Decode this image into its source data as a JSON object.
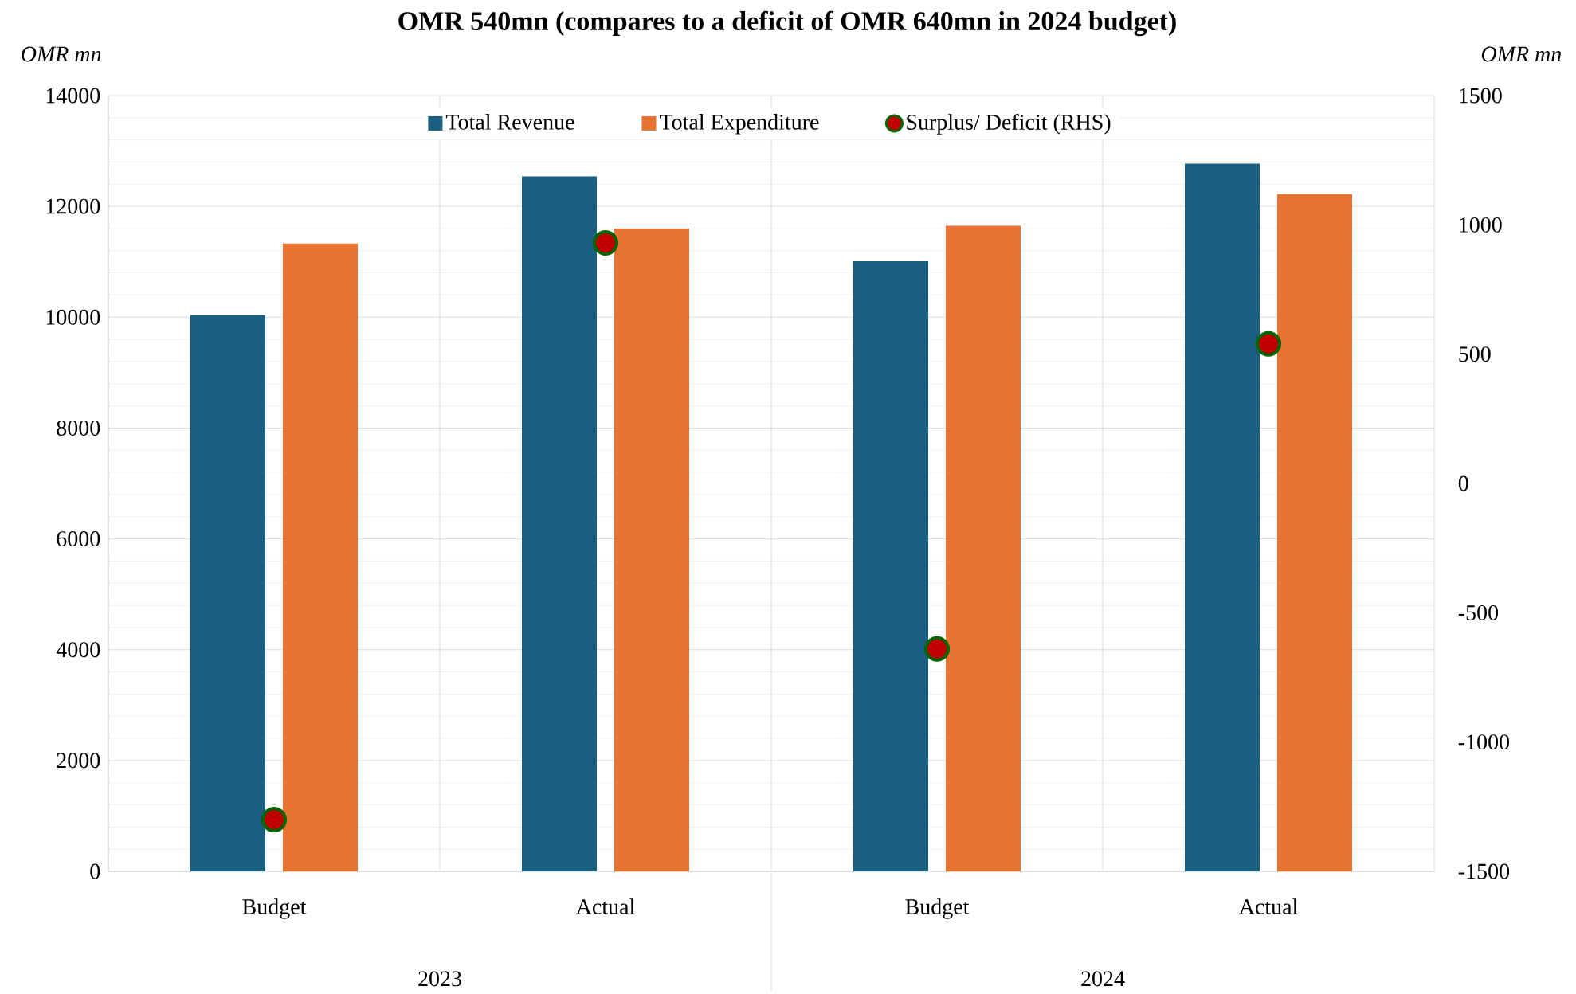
{
  "chart_data": {
    "type": "bar",
    "title": "OMR 540mn (compares to a deficit of OMR 640mn in 2024 budget)",
    "ylabel": "OMR mn",
    "y2label": "OMR mn",
    "categories": [
      "Budget",
      "Actual",
      "Budget",
      "Actual"
    ],
    "series": [
      {
        "name": "Total Revenue",
        "color": "#1a5f80",
        "values": [
          10040,
          12540,
          11010,
          12770
        ]
      },
      {
        "name": "Total Expenditure",
        "color": "#e97333",
        "values": [
          11330,
          11600,
          11650,
          12220
        ]
      },
      {
        "name": "Surplus/ Deficit (RHS)",
        "type": "scatter",
        "axis": "y2",
        "color": "#c00000",
        "values": [
          -1300,
          930,
          -640,
          540
        ]
      }
    ],
    "ylim": [
      0,
      14000
    ],
    "yticks": [
      0,
      2000,
      4000,
      6000,
      8000,
      10000,
      12000,
      14000
    ],
    "y2lim": [
      -1500,
      1500
    ],
    "y2ticks": [
      -1500,
      -1000,
      -500,
      0,
      500,
      1000,
      1500
    ],
    "grid": true,
    "legend": "top",
    "marker": "circle",
    "annotations": [
      "2023",
      "2024"
    ]
  }
}
